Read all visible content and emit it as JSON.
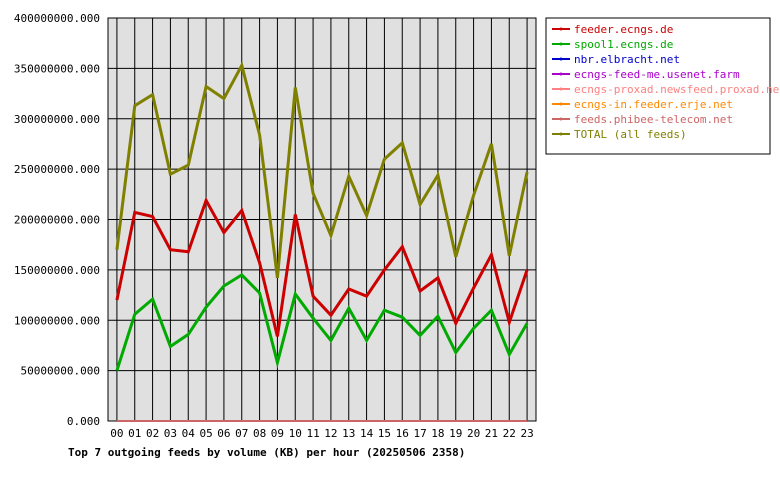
{
  "chart_data": {
    "type": "line",
    "title": "Top 7 outgoing feeds by volume (KB) per hour (20250506 2358)",
    "categories": [
      "00",
      "01",
      "02",
      "03",
      "04",
      "05",
      "06",
      "07",
      "08",
      "09",
      "10",
      "11",
      "12",
      "13",
      "14",
      "15",
      "16",
      "17",
      "18",
      "19",
      "20",
      "21",
      "22",
      "23"
    ],
    "y_tick_labels": [
      "0.000",
      "50000000.000",
      "100000000.000",
      "150000000.000",
      "200000000.000",
      "250000000.000",
      "300000000.000",
      "350000000.000",
      "400000000.000"
    ],
    "ylim": [
      0,
      400000000
    ],
    "grid": true,
    "legend_position": "right",
    "background_color": "#e0e0e0",
    "series": [
      {
        "name": "feeder.ecngs.de",
        "color": "#cc0000",
        "values": [
          120000000,
          207000000,
          203000000,
          170000000,
          168000000,
          219000000,
          187000000,
          209000000,
          157000000,
          84000000,
          205000000,
          124000000,
          105000000,
          131000000,
          124000000,
          150000000,
          173000000,
          129000000,
          142000000,
          97000000,
          132000000,
          165000000,
          98000000,
          150000000
        ]
      },
      {
        "name": "spool1.ecngs.de",
        "color": "#00aa00",
        "values": [
          50000000,
          106000000,
          121000000,
          74000000,
          86000000,
          113000000,
          134000000,
          145000000,
          127000000,
          58000000,
          126000000,
          102000000,
          80000000,
          112000000,
          80000000,
          110000000,
          103000000,
          85000000,
          104000000,
          68000000,
          92000000,
          110000000,
          66000000,
          97000000
        ]
      },
      {
        "name": "nbr.elbracht.net",
        "color": "#0000cc",
        "values": [
          0,
          0,
          0,
          0,
          0,
          0,
          0,
          0,
          0,
          0,
          0,
          0,
          0,
          0,
          0,
          0,
          0,
          0,
          0,
          0,
          0,
          0,
          0,
          0
        ]
      },
      {
        "name": "ecngs-feed-me.usenet.farm",
        "color": "#aa00cc",
        "values": [
          0,
          0,
          0,
          0,
          0,
          0,
          0,
          0,
          0,
          0,
          0,
          0,
          0,
          0,
          0,
          0,
          0,
          0,
          0,
          0,
          0,
          0,
          0,
          0
        ]
      },
      {
        "name": "ecngs-proxad.newsfeed.proxad.net",
        "color": "#ff8080",
        "values": [
          0,
          0,
          0,
          0,
          0,
          0,
          0,
          0,
          0,
          0,
          0,
          0,
          0,
          0,
          0,
          0,
          0,
          0,
          0,
          0,
          0,
          0,
          0,
          0
        ]
      },
      {
        "name": "ecngs-in.feeder.erje.net",
        "color": "#ff8800",
        "values": [
          0,
          0,
          0,
          0,
          0,
          0,
          0,
          0,
          0,
          0,
          0,
          0,
          0,
          0,
          0,
          0,
          0,
          0,
          0,
          0,
          0,
          0,
          0,
          0
        ]
      },
      {
        "name": "feeds.phibee-telecom.net",
        "color": "#cc6666",
        "values": [
          0,
          0,
          0,
          0,
          0,
          0,
          0,
          0,
          0,
          0,
          0,
          0,
          0,
          0,
          0,
          0,
          0,
          0,
          0,
          0,
          0,
          0,
          0,
          0
        ]
      },
      {
        "name": "TOTAL (all feeds)",
        "color": "#808000",
        "values": [
          170000000,
          313000000,
          324000000,
          245000000,
          254000000,
          332000000,
          320000000,
          353000000,
          284000000,
          142000000,
          331000000,
          226000000,
          184000000,
          243000000,
          204000000,
          260000000,
          276000000,
          215000000,
          244000000,
          163000000,
          224000000,
          275000000,
          164000000,
          247000000
        ]
      }
    ]
  }
}
